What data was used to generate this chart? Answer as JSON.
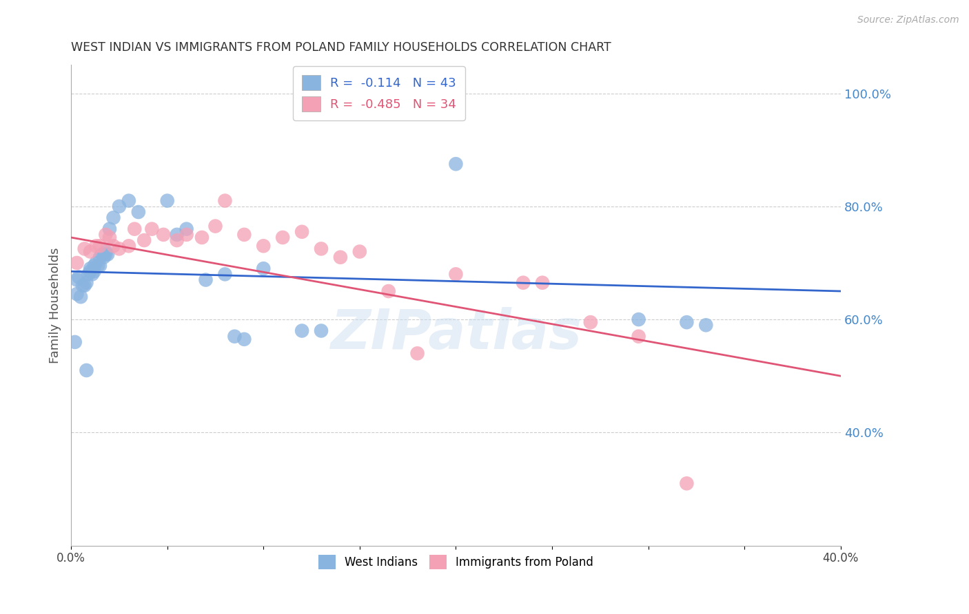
{
  "title": "WEST INDIAN VS IMMIGRANTS FROM POLAND FAMILY HOUSEHOLDS CORRELATION CHART",
  "source": "Source: ZipAtlas.com",
  "ylabel": "Family Households",
  "xlim": [
    0.0,
    0.4
  ],
  "ylim": [
    0.2,
    1.05
  ],
  "right_yticks": [
    1.0,
    0.8,
    0.6,
    0.4
  ],
  "right_yticklabels": [
    "100.0%",
    "80.0%",
    "60.0%",
    "40.0%"
  ],
  "xticks": [
    0.0,
    0.05,
    0.1,
    0.15,
    0.2,
    0.25,
    0.3,
    0.35,
    0.4
  ],
  "xticklabels": [
    "0.0%",
    "",
    "",
    "",
    "",
    "",
    "",
    "",
    "40.0%"
  ],
  "grid_color": "#cccccc",
  "background_color": "#ffffff",
  "blue_color": "#8ab4e0",
  "pink_color": "#f4a0b5",
  "blue_line_color": "#3366cc",
  "pink_line_color": "#e05575",
  "legend1_r": -0.114,
  "legend1_n": 43,
  "legend2_r": -0.485,
  "legend2_n": 34,
  "watermark": "ZIPatlas",
  "series1_label": "West Indians",
  "series2_label": "Immigrants from Poland",
  "blue_trend_x0": 0.0,
  "blue_trend_y0": 0.685,
  "blue_trend_x1": 0.4,
  "blue_trend_y1": 0.65,
  "pink_trend_x0": 0.0,
  "pink_trend_y0": 0.745,
  "pink_trend_x1": 0.4,
  "pink_trend_y1": 0.5,
  "blue_x": [
    0.003,
    0.004,
    0.006,
    0.007,
    0.008,
    0.009,
    0.01,
    0.01,
    0.011,
    0.012,
    0.012,
    0.013,
    0.014,
    0.015,
    0.015,
    0.016,
    0.017,
    0.018,
    0.018,
    0.019,
    0.02,
    0.022,
    0.025,
    0.03,
    0.035,
    0.05,
    0.055,
    0.06,
    0.07,
    0.08,
    0.085,
    0.09,
    0.1,
    0.12,
    0.13,
    0.2,
    0.295,
    0.32,
    0.33,
    0.002,
    0.003,
    0.005,
    0.008
  ],
  "blue_y": [
    0.67,
    0.675,
    0.66,
    0.66,
    0.665,
    0.68,
    0.685,
    0.69,
    0.68,
    0.685,
    0.695,
    0.7,
    0.695,
    0.695,
    0.71,
    0.715,
    0.71,
    0.715,
    0.72,
    0.715,
    0.76,
    0.78,
    0.8,
    0.81,
    0.79,
    0.81,
    0.75,
    0.76,
    0.67,
    0.68,
    0.57,
    0.565,
    0.69,
    0.58,
    0.58,
    0.875,
    0.6,
    0.595,
    0.59,
    0.56,
    0.645,
    0.64,
    0.51
  ],
  "pink_x": [
    0.003,
    0.007,
    0.01,
    0.013,
    0.015,
    0.018,
    0.02,
    0.022,
    0.025,
    0.03,
    0.033,
    0.038,
    0.042,
    0.048,
    0.055,
    0.06,
    0.068,
    0.075,
    0.08,
    0.09,
    0.1,
    0.11,
    0.12,
    0.13,
    0.14,
    0.15,
    0.165,
    0.18,
    0.2,
    0.235,
    0.245,
    0.27,
    0.295,
    0.32
  ],
  "pink_y": [
    0.7,
    0.725,
    0.72,
    0.73,
    0.73,
    0.75,
    0.745,
    0.73,
    0.725,
    0.73,
    0.76,
    0.74,
    0.76,
    0.75,
    0.74,
    0.75,
    0.745,
    0.765,
    0.81,
    0.75,
    0.73,
    0.745,
    0.755,
    0.725,
    0.71,
    0.72,
    0.65,
    0.54,
    0.68,
    0.665,
    0.665,
    0.595,
    0.57,
    0.31
  ]
}
